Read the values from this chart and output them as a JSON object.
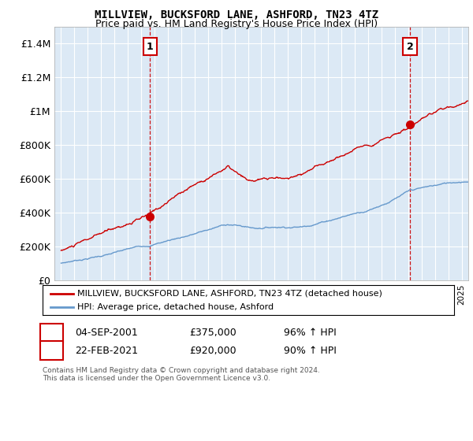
{
  "title": "MILLVIEW, BUCKSFORD LANE, ASHFORD, TN23 4TZ",
  "subtitle": "Price paid vs. HM Land Registry's House Price Index (HPI)",
  "legend_label_red": "MILLVIEW, BUCKSFORD LANE, ASHFORD, TN23 4TZ (detached house)",
  "legend_label_blue": "HPI: Average price, detached house, Ashford",
  "point1_date": "04-SEP-2001",
  "point1_price": "£375,000",
  "point1_hpi": "96% ↑ HPI",
  "point1_year": 2001.67,
  "point1_value": 375000,
  "point2_date": "22-FEB-2021",
  "point2_price": "£920,000",
  "point2_hpi": "90% ↑ HPI",
  "point2_year": 2021.14,
  "point2_value": 920000,
  "footnote1": "Contains HM Land Registry data © Crown copyright and database right 2024.",
  "footnote2": "This data is licensed under the Open Government Licence v3.0.",
  "ylim": [
    0,
    1500000
  ],
  "yticks": [
    0,
    200000,
    400000,
    600000,
    800000,
    1000000,
    1200000,
    1400000
  ],
  "ytick_labels": [
    "£0",
    "£200K",
    "£400K",
    "£600K",
    "£800K",
    "£1M",
    "£1.2M",
    "£1.4M"
  ],
  "xmin": 1994.5,
  "xmax": 2025.5,
  "red_color": "#cc0000",
  "blue_color": "#6699cc",
  "plot_bg_color": "#dce9f5",
  "background_color": "#ffffff",
  "grid_color": "#ffffff"
}
